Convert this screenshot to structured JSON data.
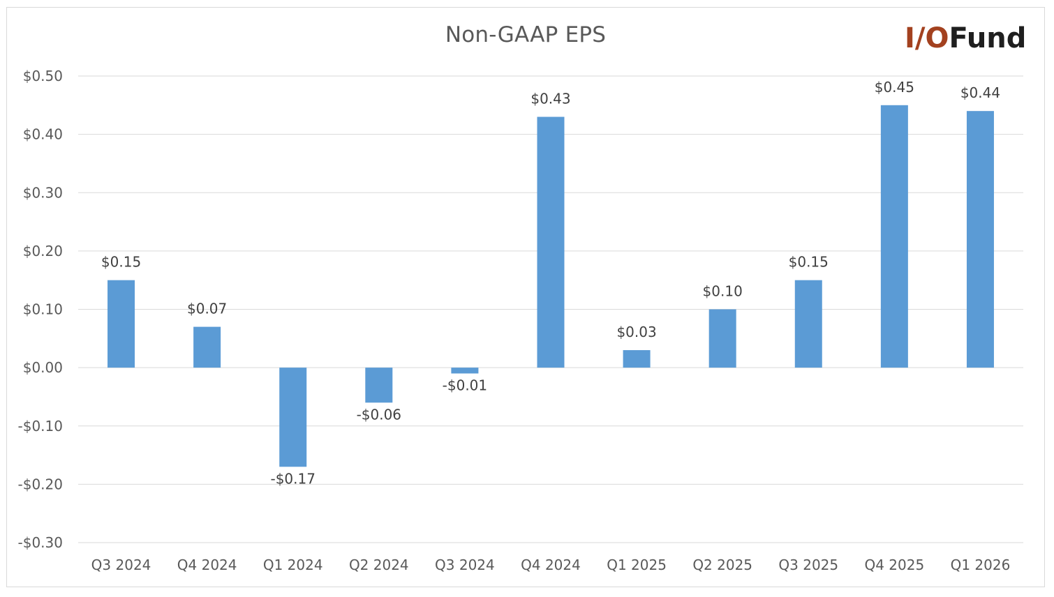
{
  "logo": {
    "io": "I/O",
    "fund": "Fund"
  },
  "colors": {
    "bar": "#5b9bd5",
    "grid": "#d9d9d9",
    "logo_accent": "#a3411f"
  },
  "chart_data": {
    "type": "bar",
    "title": "Non-GAAP EPS",
    "xlabel": "",
    "ylabel": "",
    "categories": [
      "Q3 2024",
      "Q4 2024",
      "Q1 2024",
      "Q2 2024",
      "Q3 2024",
      "Q4 2024",
      "Q1 2025",
      "Q2 2025",
      "Q3 2025",
      "Q4 2025",
      "Q1 2026"
    ],
    "values": [
      0.15,
      0.07,
      -0.17,
      -0.06,
      -0.01,
      0.43,
      0.03,
      0.1,
      0.15,
      0.45,
      0.44
    ],
    "data_labels": [
      "$0.15",
      "$0.07",
      "-$0.17",
      "-$0.06",
      "-$0.01",
      "$0.43",
      "$0.03",
      "$0.10",
      "$0.15",
      "$0.45",
      "$0.44"
    ],
    "ylim": [
      -0.3,
      0.5
    ],
    "yticks": [
      0.5,
      0.4,
      0.3,
      0.2,
      0.1,
      0.0,
      -0.1,
      -0.2,
      -0.3
    ],
    "ytick_labels": [
      "$0.50",
      "$0.40",
      "$0.30",
      "$0.20",
      "$0.10",
      "$0.00",
      "-$0.10",
      "-$0.20",
      "-$0.30"
    ],
    "grid": true,
    "legend": "none"
  }
}
